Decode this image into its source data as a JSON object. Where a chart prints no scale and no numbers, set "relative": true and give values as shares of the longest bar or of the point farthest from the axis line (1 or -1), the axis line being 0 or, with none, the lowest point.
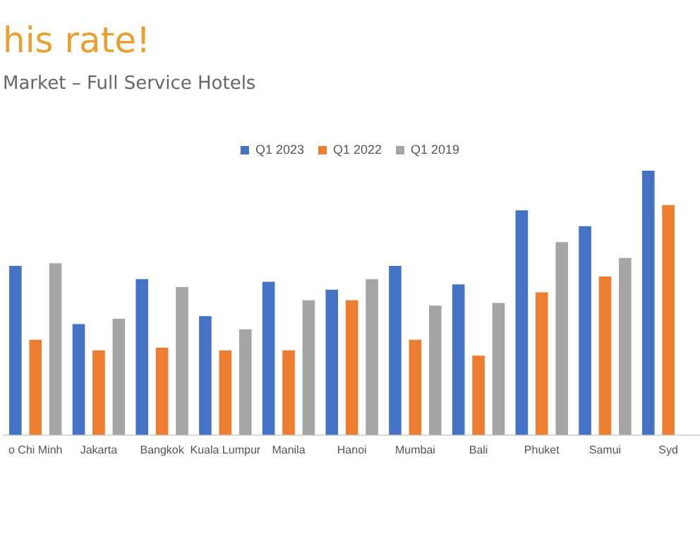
{
  "chart_data": {
    "type": "bar",
    "title": "his rate!",
    "subtitle": "Market – Full Service Hotels",
    "relative": true,
    "legend": "top",
    "grid": false,
    "categories": [
      "o Chi Minh",
      "Jakarta",
      "Bangkok",
      "Kuala Lumpur",
      "Manila",
      "Hanoi",
      "Mumbai",
      "Bali",
      "Phuket",
      "Samui",
      "Syd"
    ],
    "series": [
      {
        "name": "Q1 2023",
        "color": "#4472c4",
        "values": [
          0.64,
          0.42,
          0.59,
          0.45,
          0.58,
          0.55,
          0.64,
          0.57,
          0.85,
          0.79,
          1
        ]
      },
      {
        "name": "Q1 2022",
        "color": "#ed7d31",
        "values": [
          0.36,
          0.32,
          0.33,
          0.32,
          0.32,
          0.51,
          0.36,
          0.3,
          0.54,
          0.6,
          0.87
        ]
      },
      {
        "name": "Q1 2019",
        "color": "#a5a5a5",
        "values": [
          0.65,
          0.44,
          0.56,
          0.4,
          0.51,
          0.59,
          0.49,
          0.5,
          0.73,
          0.67,
          null
        ]
      }
    ]
  }
}
